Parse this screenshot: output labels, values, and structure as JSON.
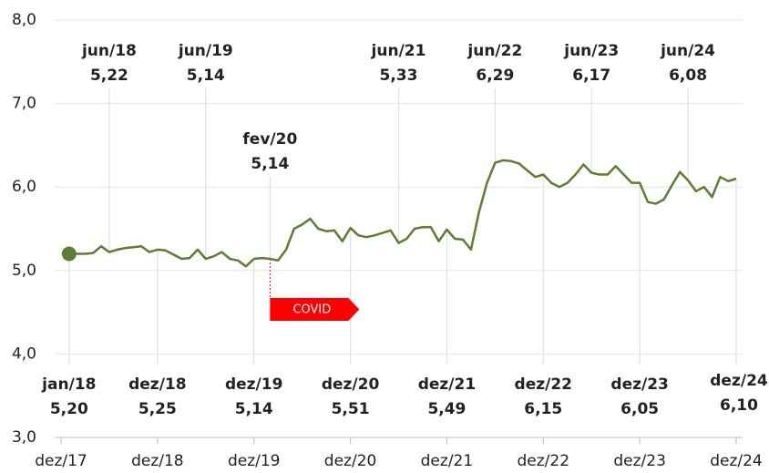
{
  "chart_data": {
    "type": "line",
    "categories": [
      "dez/17",
      "jan/18",
      null,
      null,
      null,
      null,
      "jun/18",
      null,
      null,
      null,
      null,
      null,
      "dez/18",
      null,
      null,
      null,
      null,
      null,
      "jun/19",
      null,
      null,
      null,
      null,
      null,
      "dez/19",
      null,
      "fev/20",
      null,
      null,
      null,
      null,
      null,
      null,
      null,
      null,
      null,
      "dez/20",
      null,
      null,
      null,
      null,
      null,
      "jun/21",
      null,
      null,
      null,
      null,
      null,
      "dez/21",
      null,
      null,
      null,
      null,
      null,
      "jun/22",
      null,
      null,
      null,
      null,
      null,
      "dez/22",
      null,
      null,
      null,
      null,
      null,
      "jun/23",
      null,
      null,
      null,
      null,
      null,
      "dez/23",
      null,
      null,
      null,
      null,
      null,
      "jun/24",
      null,
      null,
      null,
      null,
      null,
      "dez/24"
    ],
    "values": [
      null,
      5.2,
      5.2,
      5.2,
      5.21,
      5.29,
      5.22,
      5.25,
      5.27,
      5.28,
      5.29,
      5.22,
      5.25,
      5.24,
      5.19,
      5.14,
      5.15,
      5.25,
      5.14,
      5.17,
      5.22,
      5.14,
      5.12,
      5.05,
      5.14,
      5.15,
      5.14,
      5.12,
      5.25,
      5.5,
      5.55,
      5.62,
      5.5,
      5.47,
      5.48,
      5.35,
      5.51,
      5.42,
      5.4,
      5.42,
      5.45,
      5.48,
      5.33,
      5.38,
      5.5,
      5.52,
      5.52,
      5.35,
      5.49,
      5.38,
      5.37,
      5.25,
      5.7,
      6.05,
      6.29,
      6.32,
      6.31,
      6.28,
      6.2,
      6.12,
      6.15,
      6.05,
      6.0,
      6.05,
      6.15,
      6.27,
      6.17,
      6.15,
      6.15,
      6.25,
      6.15,
      6.05,
      6.05,
      5.82,
      5.8,
      5.85,
      6.02,
      6.18,
      6.08,
      5.95,
      6.0,
      5.88,
      6.12,
      6.07,
      6.1
    ],
    "value_labels": [
      null,
      "5,20",
      null,
      null,
      null,
      null,
      "5,22",
      null,
      null,
      null,
      null,
      null,
      "5,25",
      null,
      null,
      null,
      null,
      null,
      "5,14",
      null,
      null,
      null,
      null,
      null,
      "5,14",
      null,
      "5,14",
      null,
      null,
      null,
      null,
      null,
      null,
      null,
      null,
      null,
      "5,51",
      null,
      null,
      null,
      null,
      null,
      "5,33",
      null,
      null,
      null,
      null,
      null,
      "5,49",
      null,
      null,
      null,
      null,
      null,
      "6,29",
      null,
      null,
      null,
      null,
      null,
      "6,15",
      null,
      null,
      null,
      null,
      null,
      "6,17",
      null,
      null,
      null,
      null,
      null,
      "6,05",
      null,
      null,
      null,
      null,
      null,
      "6,08",
      null,
      null,
      null,
      null,
      null,
      "6,10"
    ],
    "color": "#5b7f31",
    "ylim": [
      3,
      8
    ],
    "yticks": [
      {
        "value": 3,
        "label": "3,0"
      },
      {
        "value": 4,
        "label": "4,0"
      },
      {
        "value": 5,
        "label": "5,0"
      },
      {
        "value": 6,
        "label": "6,0"
      },
      {
        "value": 7,
        "label": "7,0"
      },
      {
        "value": 8,
        "label": "8,0"
      }
    ],
    "grid": true,
    "annotations": [
      {
        "text": "COVID",
        "color": "#ff0000"
      }
    ]
  }
}
